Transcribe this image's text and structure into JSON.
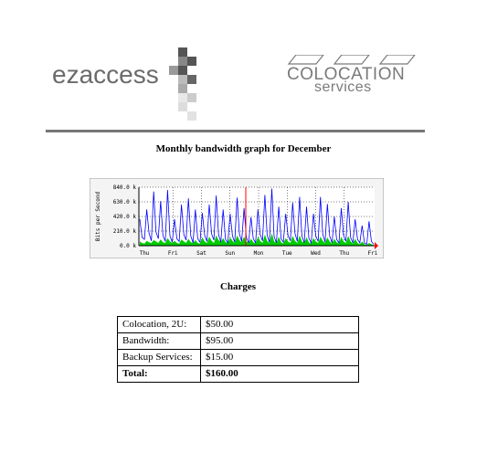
{
  "logo_left": {
    "brand": "ezaccess"
  },
  "logo_right": {
    "line1": "COLOCATION",
    "line2": "services"
  },
  "graph": {
    "title": "Monthly bandwidth graph for December"
  },
  "chart_data": {
    "type": "area",
    "ylabel": "Bits per Second",
    "y_ticks": [
      "0.0 k",
      "210.0 k",
      "420.0 k",
      "630.0 k",
      "840.0 k"
    ],
    "ylim": [
      0,
      840000
    ],
    "x_ticks": [
      "Thu",
      "Fri",
      "Sat",
      "Sun",
      "Mon",
      "Tue",
      "Wed",
      "Thu",
      "Fri"
    ],
    "grid": true,
    "series": [
      {
        "color": "#0000ff",
        "style": "line",
        "values": [
          380,
          120,
          90,
          520,
          180,
          70,
          780,
          200,
          100,
          640,
          150,
          60,
          800,
          140,
          50,
          380,
          100,
          60,
          590,
          160,
          80,
          680,
          140,
          40,
          520,
          100,
          50,
          470,
          150,
          60,
          590,
          170,
          80,
          720,
          160,
          50,
          520,
          90,
          40,
          460,
          140,
          50,
          690,
          170,
          60,
          540,
          120,
          40,
          410,
          100,
          40,
          520,
          160,
          70,
          730,
          150,
          50,
          820,
          130,
          40,
          560,
          100,
          50,
          460,
          150,
          70,
          620,
          180,
          60,
          700,
          140,
          40,
          560,
          110,
          40,
          460,
          140,
          60,
          700,
          170,
          50,
          600,
          140,
          40,
          420,
          90,
          40,
          540,
          150,
          60,
          630,
          120,
          40,
          380,
          90,
          40,
          290,
          40,
          20,
          350,
          60,
          20
        ]
      },
      {
        "color": "#00cc00",
        "style": "area",
        "values": [
          60,
          40,
          30,
          70,
          50,
          40,
          80,
          60,
          40,
          90,
          50,
          40,
          110,
          60,
          40,
          70,
          40,
          30,
          90,
          60,
          40,
          100,
          50,
          40,
          80,
          40,
          30,
          120,
          60,
          40,
          130,
          70,
          40,
          150,
          80,
          50,
          110,
          50,
          40,
          120,
          70,
          40,
          150,
          80,
          50,
          130,
          60,
          40,
          100,
          50,
          30,
          130,
          70,
          40,
          160,
          70,
          40,
          180,
          60,
          40,
          130,
          50,
          30,
          110,
          60,
          40,
          140,
          70,
          40,
          150,
          60,
          40,
          120,
          50,
          30,
          110,
          60,
          40,
          130,
          70,
          40,
          120,
          60,
          30,
          100,
          50,
          30,
          130,
          60,
          40,
          140,
          60,
          30,
          100,
          40,
          20,
          60,
          20,
          10,
          40,
          20,
          10
        ]
      },
      {
        "color": "#ff0000",
        "style": "marker",
        "values": []
      }
    ]
  },
  "charges": {
    "title": "Charges",
    "rows": [
      {
        "label": "Colocation, 2U:",
        "value": "$50.00"
      },
      {
        "label": "Bandwidth:",
        "value": "$95.00"
      },
      {
        "label": "Backup Services:",
        "value": "$15.00"
      }
    ],
    "total": {
      "label": "Total:",
      "value": "$160.00"
    }
  },
  "colors": {
    "rule": "#777777",
    "logo_gray": "#6b6b6b",
    "graph_bg": "#f4f4f4",
    "grid": "#000000",
    "blue_series": "#0000ff",
    "green_series": "#00cc00",
    "red_marker": "#ff0000"
  }
}
